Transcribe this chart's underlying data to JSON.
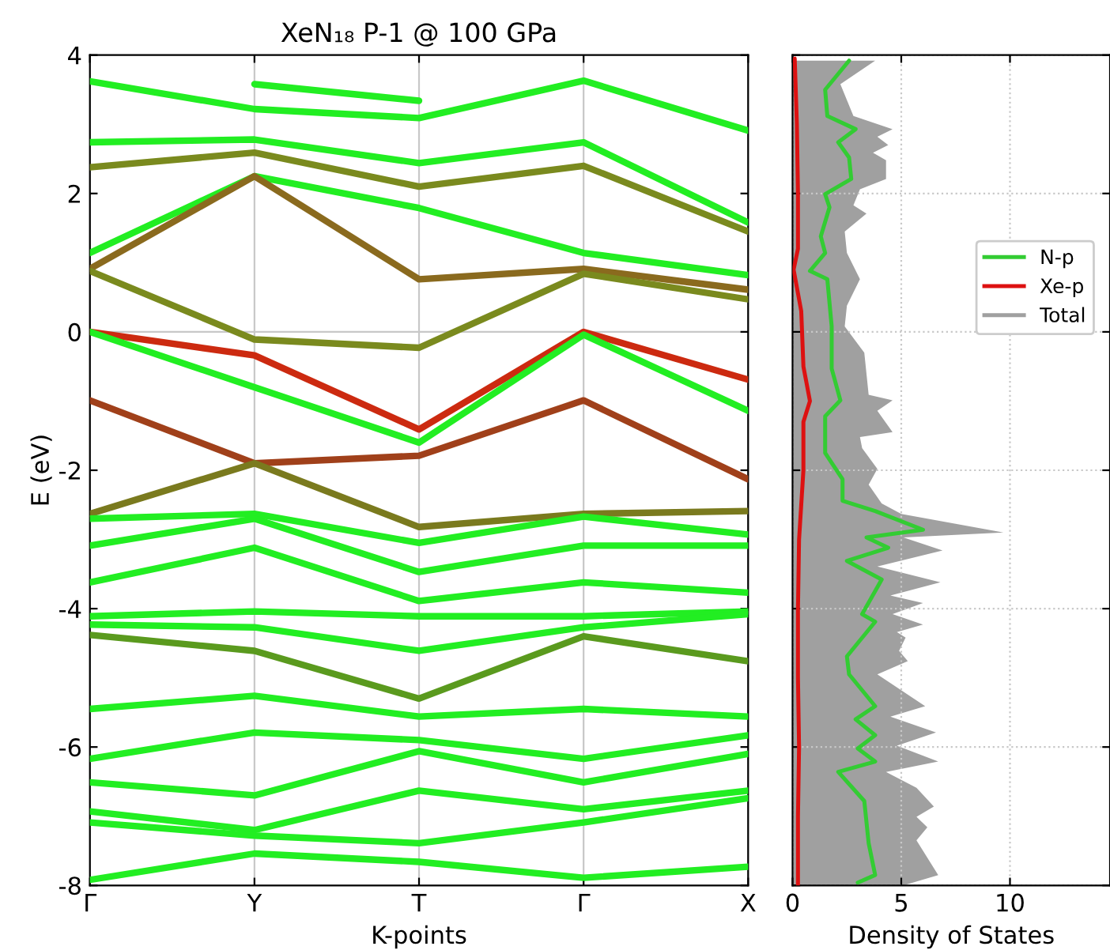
{
  "chart_data": [
    {
      "type": "line",
      "title": "XeN₁₈ P-1 @ 100 GPa",
      "xlabel": "K-points",
      "ylabel": "E (eV)",
      "categories": [
        "Γ",
        "Y",
        "T",
        "Γ",
        "X"
      ],
      "ylim": [
        -8,
        4
      ],
      "yticks": [
        -8,
        -6,
        -4,
        -2,
        0,
        2,
        4
      ],
      "grid": "x",
      "ref_lines": [
        {
          "axis": "y",
          "value": 0,
          "color": "#c8c8c8"
        }
      ],
      "series": [
        {
          "color": "#22ee22",
          "values": [
            null,
            3.58,
            3.34,
            null,
            null
          ]
        },
        {
          "color": "#22ee22",
          "values": [
            3.62,
            3.22,
            3.09,
            3.63,
            2.91
          ]
        },
        {
          "color": "#22ee22",
          "values": [
            2.74,
            2.78,
            2.44,
            2.74,
            1.58
          ]
        },
        {
          "color": "#7a8a1e",
          "values": [
            2.38,
            2.59,
            2.1,
            2.4,
            1.45
          ]
        },
        {
          "color": "#22ee22",
          "values": [
            1.14,
            2.25,
            1.79,
            1.14,
            0.82
          ]
        },
        {
          "color": "#8a6a1e",
          "values": [
            0.91,
            2.25,
            0.76,
            0.91,
            0.61
          ]
        },
        {
          "color": "#7a8a1e",
          "values": [
            0.88,
            -0.11,
            -0.23,
            0.84,
            0.47
          ]
        },
        {
          "color": "#cc2a10",
          "values": [
            0.0,
            -0.34,
            -1.41,
            0.0,
            -0.69
          ]
        },
        {
          "color": "#22ee22",
          "values": [
            0.0,
            -0.8,
            -1.6,
            -0.04,
            -1.14
          ]
        },
        {
          "color": "#a0401a",
          "values": [
            -0.99,
            -1.9,
            -1.79,
            -0.99,
            -2.13
          ]
        },
        {
          "color": "#7a7a1e",
          "values": [
            -2.63,
            -1.9,
            -2.82,
            -2.63,
            -2.59
          ]
        },
        {
          "color": "#22ee22",
          "values": [
            -2.7,
            -2.63,
            -3.05,
            -2.67,
            -2.93
          ]
        },
        {
          "color": "#22ee22",
          "values": [
            -3.09,
            -2.7,
            -3.47,
            -3.09,
            -3.09
          ]
        },
        {
          "color": "#22ee22",
          "values": [
            -3.62,
            -3.12,
            -3.89,
            -3.62,
            -3.77
          ]
        },
        {
          "color": "#22ee22",
          "values": [
            -4.11,
            -4.04,
            -4.11,
            -4.11,
            -4.04
          ]
        },
        {
          "color": "#22ee22",
          "values": [
            -4.23,
            -4.27,
            -4.61,
            -4.27,
            -4.08
          ]
        },
        {
          "color": "#5a9a1e",
          "values": [
            -4.38,
            -4.61,
            -5.3,
            -4.4,
            -4.76
          ]
        },
        {
          "color": "#22ee22",
          "values": [
            -5.45,
            -5.26,
            -5.56,
            -5.45,
            -5.56
          ]
        },
        {
          "color": "#22ee22",
          "values": [
            -6.17,
            -5.79,
            -5.9,
            -6.17,
            -5.83
          ]
        },
        {
          "color": "#22ee22",
          "values": [
            -6.51,
            -6.7,
            -6.06,
            -6.51,
            -6.1
          ]
        },
        {
          "color": "#22ee22",
          "values": [
            -6.93,
            -7.2,
            -6.63,
            -6.9,
            -6.63
          ]
        },
        {
          "color": "#22ee22",
          "values": [
            -7.09,
            -7.28,
            -7.39,
            -7.09,
            -6.74
          ]
        },
        {
          "color": "#22ee22",
          "values": [
            -7.92,
            -7.54,
            -7.66,
            -7.89,
            -7.73
          ]
        }
      ]
    },
    {
      "type": "line",
      "orientation": "horizontal",
      "xlabel": "Density of States",
      "xlim": [
        0,
        14.6
      ],
      "xticks": [
        0,
        5,
        10
      ],
      "ylim": [
        -8,
        4
      ],
      "yticks": [
        -8,
        -6,
        -4,
        -2,
        0,
        2,
        4
      ],
      "tick_labels": "x",
      "grid": true,
      "legend": "right",
      "series": [
        {
          "name": "N-p",
          "color": "#33cc33",
          "x": [
            3.92,
            3.5,
            3.12,
            2.93,
            2.74,
            2.52,
            2.21,
            1.99,
            1.8,
            1.38,
            1.14,
            0.88,
            0.76,
            0.08,
            -0.53,
            -0.99,
            -1.22,
            -1.75,
            -2.13,
            -2.44,
            -2.59,
            -2.86,
            -2.97,
            -3.12,
            -3.31,
            -3.58,
            -4.08,
            -4.19,
            -4.69,
            -4.95,
            -5.41,
            -5.6,
            -5.83,
            -6.02,
            -6.21,
            -6.36,
            -6.78,
            -7.39,
            -7.85,
            -7.96
          ],
          "values": [
            2.6,
            1.5,
            1.6,
            2.9,
            2.1,
            2.6,
            2.7,
            1.5,
            1.7,
            1.3,
            1.5,
            0.8,
            1.6,
            1.8,
            1.8,
            2.2,
            1.5,
            1.5,
            2.3,
            2.3,
            3.8,
            6.0,
            3.4,
            4.4,
            2.5,
            4.1,
            3.2,
            3.8,
            2.5,
            2.6,
            3.8,
            2.9,
            3.8,
            3.0,
            3.8,
            2.1,
            3.3,
            3.5,
            3.8,
            3.0
          ]
        },
        {
          "name": "Xe-p",
          "color": "#dd1111",
          "x": [
            3.95,
            3,
            2,
            1.2,
            0.9,
            0.3,
            -0.5,
            -1.0,
            -1.3,
            -2.0,
            -2.5,
            -3,
            -4,
            -5,
            -6,
            -7,
            -8
          ],
          "values": [
            0.1,
            0.2,
            0.25,
            0.25,
            0.05,
            0.4,
            0.5,
            0.8,
            0.5,
            0.5,
            0.4,
            0.3,
            0.25,
            0.25,
            0.3,
            0.25,
            0.25
          ]
        },
        {
          "name": "Total",
          "type": "area",
          "color": "#a0a0a0",
          "x": [
            3.92,
            3.58,
            3.12,
            2.93,
            2.82,
            2.7,
            2.59,
            2.48,
            2.21,
            2.06,
            1.83,
            1.71,
            1.45,
            1.14,
            0.76,
            0.38,
            0.08,
            -0.3,
            -0.91,
            -0.99,
            -1.14,
            -1.45,
            -1.52,
            -1.68,
            -1.98,
            -2.21,
            -2.48,
            -2.63,
            -2.9,
            -2.97,
            -3.16,
            -3.39,
            -3.62,
            -3.81,
            -3.92,
            -4.08,
            -4.23,
            -4.34,
            -4.42,
            -4.61,
            -4.76,
            -4.95,
            -5.41,
            -5.56,
            -5.79,
            -5.98,
            -6.21,
            -6.36,
            -6.59,
            -6.86,
            -7.01,
            -7.16,
            -7.35,
            -7.85,
            -8.0
          ],
          "values": [
            3.8,
            2.2,
            2.8,
            4.6,
            3.9,
            4.4,
            3.7,
            4.3,
            4.3,
            3.1,
            2.8,
            3.4,
            2.4,
            2.5,
            3.1,
            2.5,
            2.4,
            3.3,
            3.5,
            4.6,
            3.9,
            4.6,
            3.1,
            3.2,
            3.9,
            3.5,
            4.1,
            5.0,
            9.7,
            5.1,
            6.9,
            3.9,
            6.8,
            4.5,
            6.0,
            4.6,
            6.0,
            4.8,
            5.2,
            4.9,
            5.3,
            3.9,
            6.1,
            4.5,
            6.6,
            4.8,
            6.7,
            4.3,
            5.7,
            6.5,
            5.7,
            6.2,
            5.7,
            6.7,
            5.1
          ]
        }
      ]
    }
  ]
}
